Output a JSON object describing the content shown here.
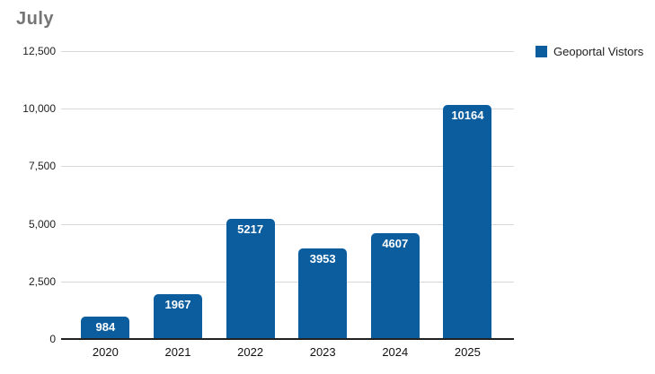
{
  "header": {
    "title": "July"
  },
  "legend": {
    "items": [
      {
        "label": "Geoportal Vistors",
        "color": "#0b5d9e"
      }
    ]
  },
  "chart_data": {
    "type": "bar",
    "title": "July",
    "categories": [
      "2020",
      "2021",
      "2022",
      "2023",
      "2024",
      "2025"
    ],
    "series": [
      {
        "name": "Geoportal Vistors",
        "values": [
          984,
          1967,
          5217,
          3953,
          4607,
          10164
        ],
        "color": "#0b5d9e",
        "data_labels": [
          "984",
          "1967",
          "5217",
          "3953",
          "4607",
          "10164"
        ]
      }
    ],
    "xlabel": "",
    "ylabel": "",
    "ylim": [
      0,
      12500
    ],
    "yticks": [
      0,
      2500,
      5000,
      7500,
      10000,
      12500
    ],
    "ytick_labels": [
      "0",
      "2,500",
      "5,000",
      "7,500",
      "10,000",
      "12,500"
    ],
    "grid": true,
    "legend_position": "top-right",
    "data_label_style": "white bold, inside top of bar",
    "background": "#ffffff"
  }
}
